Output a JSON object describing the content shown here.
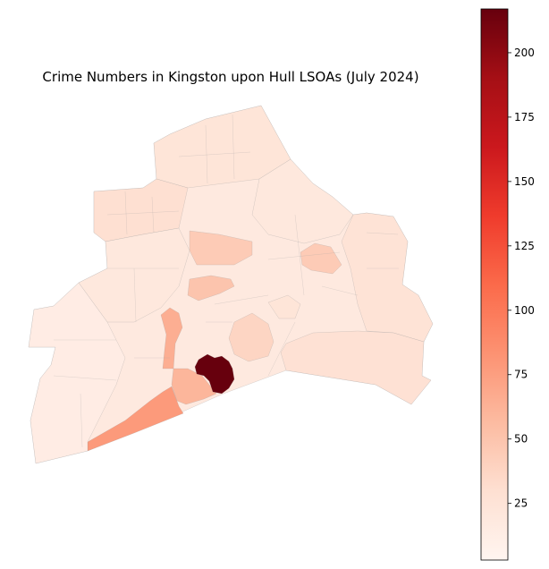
{
  "title": "Crime Numbers in Kingston upon Hull LSOAs (July 2024)",
  "colormap": {
    "name": "Reds",
    "min": 3,
    "max": 217,
    "stops": [
      "#fff5f0",
      "#fee0d2",
      "#fcbba1",
      "#fc9272",
      "#fb6a4a",
      "#ef3b2c",
      "#cb181d",
      "#a50f15",
      "#67000d"
    ],
    "ticks": [
      25,
      50,
      75,
      100,
      125,
      150,
      175,
      200
    ]
  },
  "legend_placement": "right",
  "colors": {
    "background": "#ffffff",
    "boundary": "#9a9a9a",
    "hotspot": "#67000d",
    "high": "#fc8d6a",
    "medium": "#fcbba1",
    "low": "#fee5d9"
  },
  "chart_data": {
    "type": "choropleth",
    "title": "Crime Numbers in Kingston upon Hull LSOAs (July 2024)",
    "colorbar_range": [
      3,
      217
    ],
    "colorbar_ticks": [
      25,
      50,
      75,
      100,
      125,
      150,
      175,
      200
    ],
    "highlighted_areas": [
      {
        "name": "city-centre-hotspot",
        "value": 217
      },
      {
        "name": "hessle-road-riverside",
        "value": 78
      },
      {
        "name": "central-west-corridor",
        "value": 65
      },
      {
        "name": "central-south",
        "value": 60
      },
      {
        "name": "east-cluster-north",
        "value": 45
      },
      {
        "name": "east-cluster-south",
        "value": 52
      },
      {
        "name": "north-central-block",
        "value": 45
      },
      {
        "name": "central-block",
        "value": 50
      },
      {
        "name": "east-central-block",
        "value": 38
      },
      {
        "name": "east-riverside",
        "value": 28
      },
      {
        "name": "north-west-area",
        "value": 30
      },
      {
        "name": "north-area",
        "value": 24
      },
      {
        "name": "west-area",
        "value": 20
      },
      {
        "name": "outer-west",
        "value": 14
      }
    ]
  }
}
